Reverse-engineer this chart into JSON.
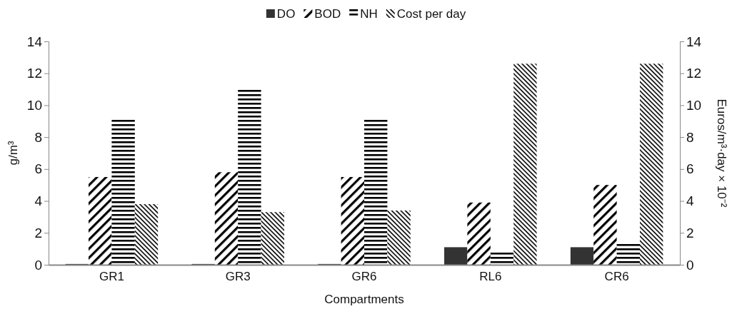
{
  "chart_data": {
    "type": "bar",
    "xlabel": "Compartments",
    "ylabel": "g/m³",
    "y2label": "Euros/m³·day × 10⁻²",
    "categories": [
      "GR1",
      "GR3",
      "GR6",
      "RL6",
      "CR6"
    ],
    "series": [
      {
        "name": "DO",
        "color": "#333333",
        "values": [
          0.05,
          0.05,
          0.05,
          1.1,
          1.1
        ]
      },
      {
        "name": "BOD",
        "color": "#000000",
        "values": [
          5.5,
          5.8,
          5.5,
          3.9,
          5.0
        ]
      },
      {
        "name": "NH",
        "color": "#000000",
        "values": [
          9.2,
          11.0,
          9.2,
          0.8,
          1.3
        ]
      },
      {
        "name": "Cost per day",
        "color": "#000000",
        "axis": "y2",
        "values": [
          3.8,
          3.3,
          3.4,
          12.6,
          12.6
        ]
      }
    ],
    "ylim": [
      0,
      14
    ],
    "yticks": [
      0,
      2,
      4,
      6,
      8,
      10,
      12,
      14
    ],
    "y2lim": [
      0,
      14
    ],
    "y2ticks": [
      0,
      2,
      4,
      6,
      8,
      10,
      12,
      14
    ],
    "grid": false,
    "legend": "top"
  }
}
